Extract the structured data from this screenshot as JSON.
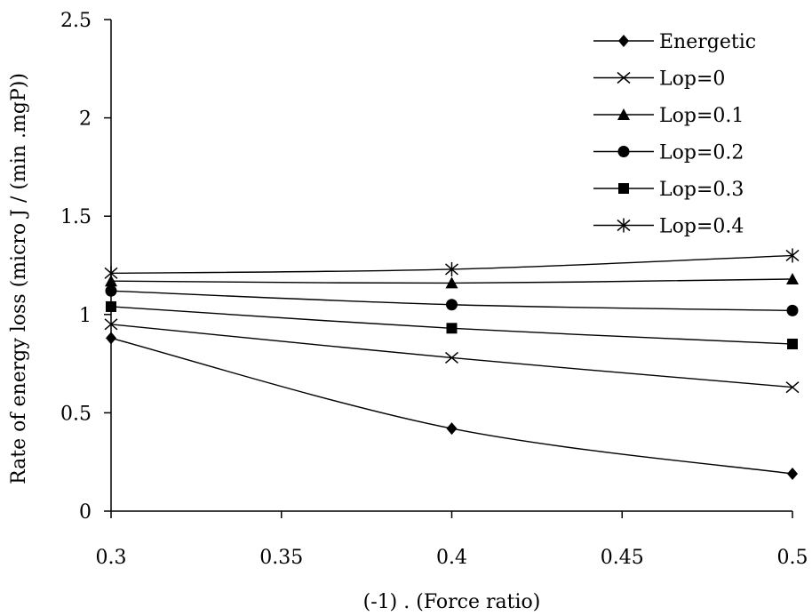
{
  "chart_data": {
    "type": "line",
    "title": "",
    "xlabel": "(-1) . (Force ratio)",
    "ylabel": "Rate of energy loss (micro J / (min .mgP))",
    "x": [
      0.3,
      0.4,
      0.5
    ],
    "xlim": [
      0.3,
      0.5
    ],
    "ylim": [
      0,
      2.5
    ],
    "xticks": [
      "0.3",
      "0.35",
      "0.4",
      "0.45",
      "0.5"
    ],
    "yticks": [
      "0",
      "0.5",
      "1",
      "1.5",
      "2",
      "2.5"
    ],
    "grid": false,
    "legend_position": "top-right",
    "series": [
      {
        "name": "Energetic",
        "marker": "diamond",
        "values": [
          0.88,
          0.42,
          0.19
        ]
      },
      {
        "name": "Lop=0",
        "marker": "x",
        "values": [
          0.95,
          0.78,
          0.63
        ]
      },
      {
        "name": "Lop=0.1",
        "marker": "triangle",
        "values": [
          1.17,
          1.16,
          1.18
        ]
      },
      {
        "name": "Lop=0.2",
        "marker": "circle",
        "values": [
          1.12,
          1.05,
          1.02
        ]
      },
      {
        "name": "Lop=0.3",
        "marker": "square",
        "values": [
          1.04,
          0.93,
          0.85
        ]
      },
      {
        "name": "Lop=0.4",
        "marker": "asterisk",
        "values": [
          1.21,
          1.23,
          1.3
        ]
      }
    ],
    "line_color": "#000000"
  }
}
